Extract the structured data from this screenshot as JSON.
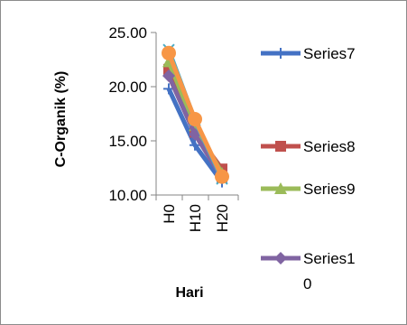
{
  "chart_data": {
    "type": "line",
    "title": "",
    "xlabel": "Hari",
    "ylabel": "C-Organik  (%)",
    "categories": [
      "H0",
      "H10",
      "H20"
    ],
    "ylim": [
      10,
      25
    ],
    "yticks": [
      "10.00",
      "15.00",
      "20.00",
      "25.00"
    ],
    "grid": false,
    "legend_position": "right",
    "series": [
      {
        "name": "Series7",
        "values": [
          19.8,
          14.6,
          11.2
        ],
        "color": "#4472c4",
        "marker": "plus"
      },
      {
        "name": "Series8",
        "values": [
          21.6,
          15.8,
          12.4
        ],
        "color": "#c0504d",
        "marker": "square"
      },
      {
        "name": "Series9",
        "values": [
          22.3,
          16.4,
          12.0
        ],
        "color": "#9bbb59",
        "marker": "triangle"
      },
      {
        "name": "Series10",
        "values": [
          21.0,
          15.6,
          11.6
        ],
        "color": "#8064a2",
        "marker": "diamond"
      },
      {
        "name": "",
        "values": [
          23.4,
          16.9,
          11.5
        ],
        "color": "#4bacc6",
        "marker": "x"
      },
      {
        "name": "",
        "values": [
          23.1,
          17.0,
          11.7
        ],
        "color": "#f79646",
        "marker": "circle"
      }
    ],
    "legend_entries": [
      "Series7",
      "Series8",
      "Series9",
      "Series1",
      "0"
    ]
  }
}
